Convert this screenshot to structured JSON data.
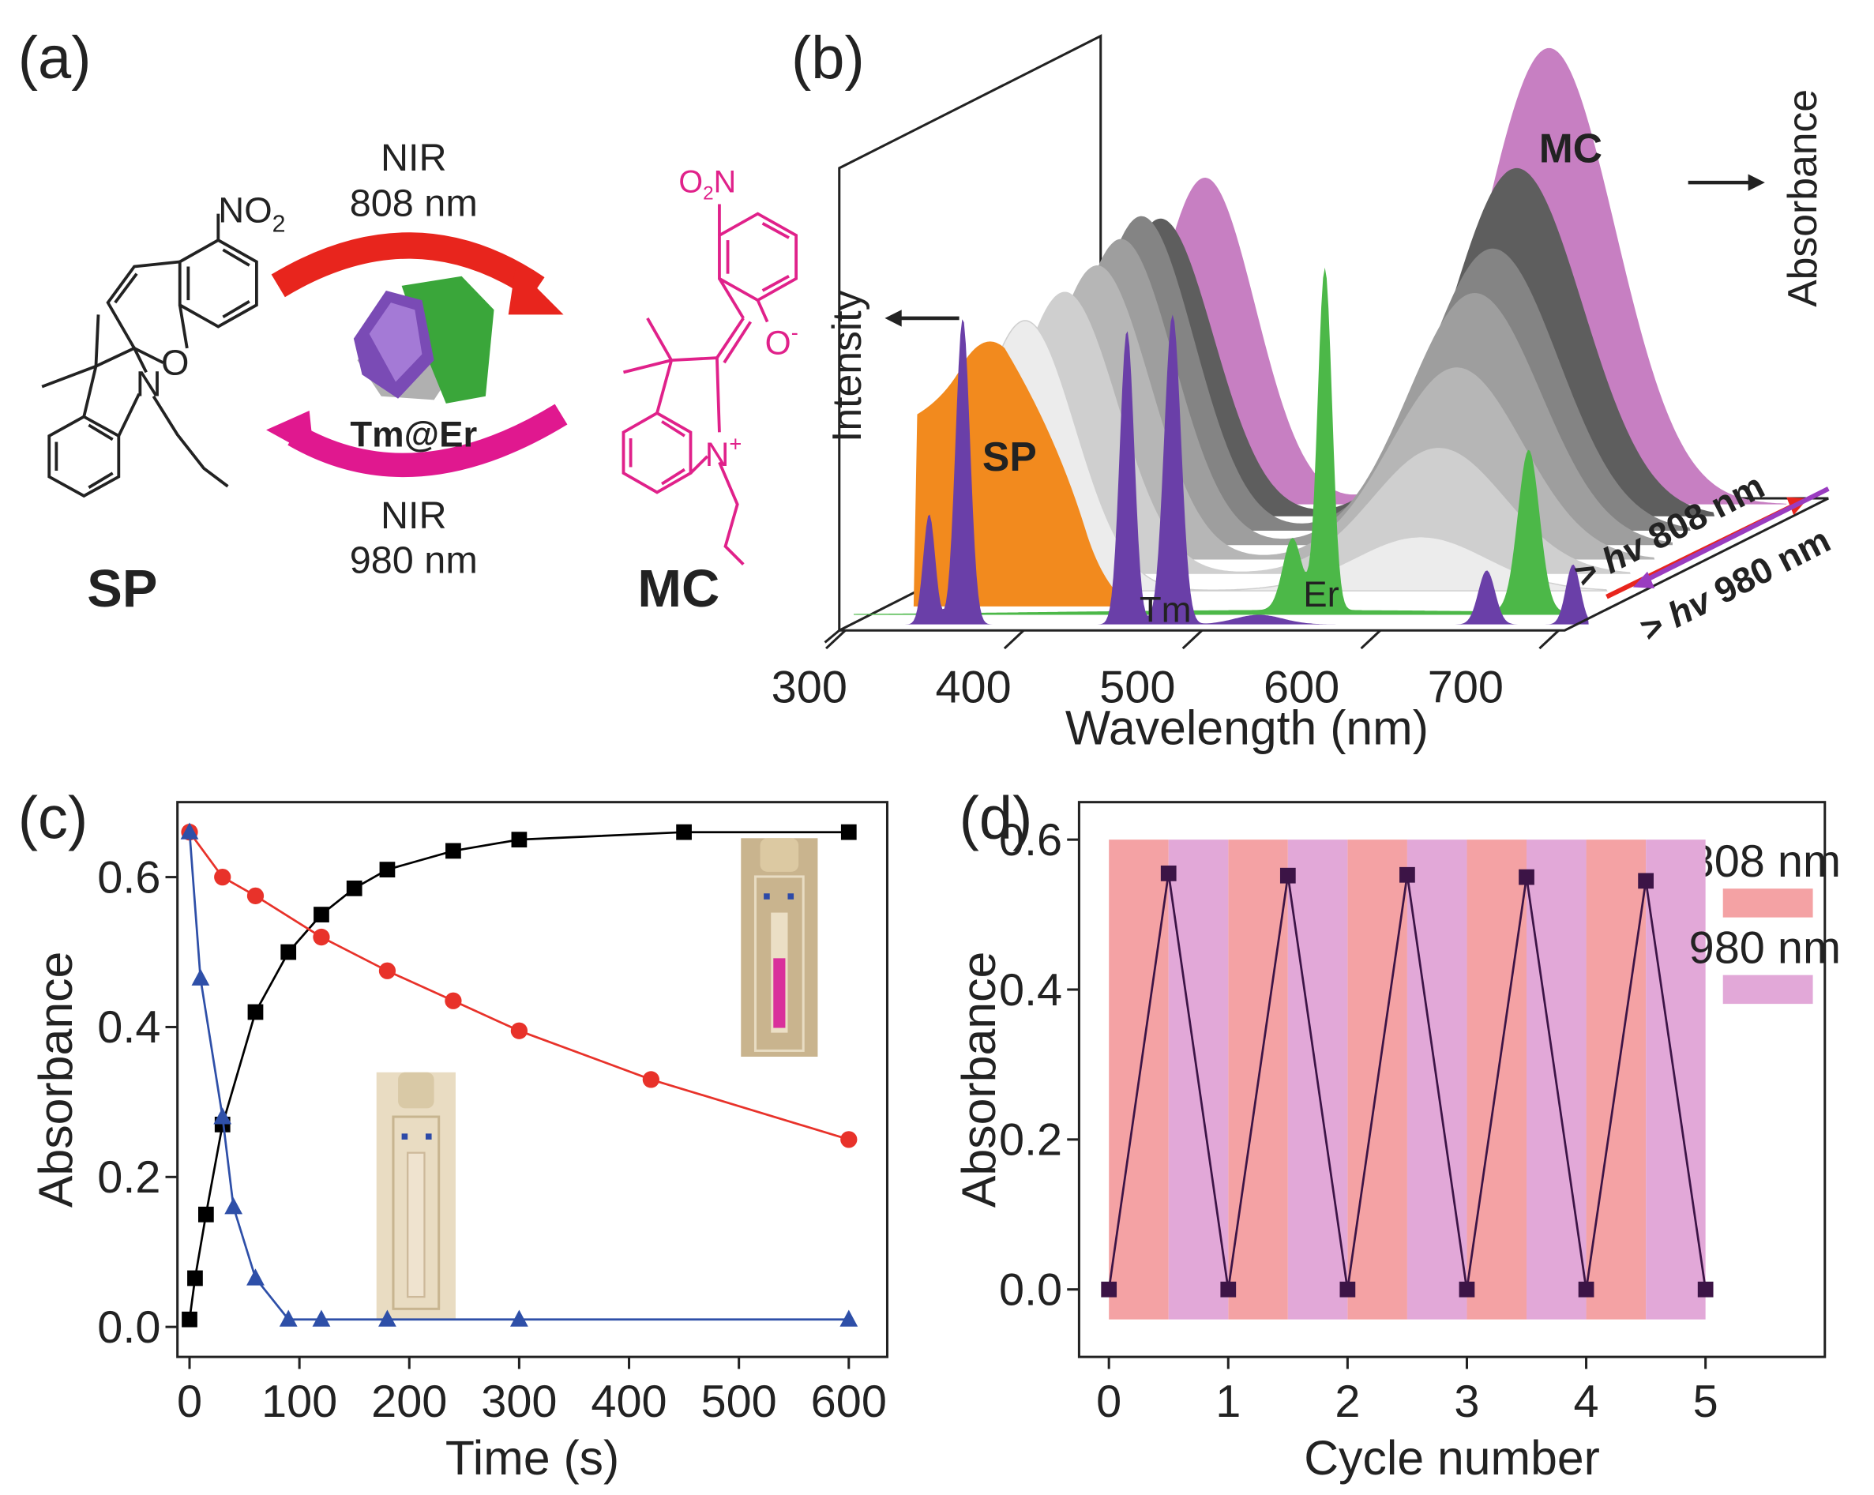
{
  "panel_a": {
    "label": "(a)",
    "top_arrow": {
      "line1": "NIR",
      "line2": "808 nm"
    },
    "bottom_arrow": {
      "line1": "NIR",
      "line2": "980 nm"
    },
    "particle": "Tm@Er",
    "left_name": "SP",
    "right_name": "MC",
    "sp_atoms": {
      "nitro": "NO",
      "nitro_sub": "2",
      "oxygen": "O",
      "nitrogen": "N"
    },
    "mc_atoms": {
      "nitro_o": "O",
      "nitro_sub": "2",
      "nitro_n": "N",
      "phenolate": "O",
      "phenolate_charge": "-",
      "nitrogen": "N",
      "nitrogen_charge": "+"
    }
  },
  "panel_b": {
    "label": "(b)",
    "x_label": "Wavelength (nm)",
    "xlim": [
      300,
      700
    ],
    "xticks": [
      300,
      400,
      500,
      600,
      700
    ],
    "left_axis": "Intensity",
    "right_axis": "Absorbance",
    "annotations": {
      "mc": "MC",
      "sp": "SP",
      "tm": "Tm",
      "er": "Er"
    },
    "beam_808": {
      "prefix": ">",
      "symbol": "hv",
      "text": "808 nm"
    },
    "beam_980": {
      "prefix": ">",
      "symbol": "hv",
      "text": "980 nm"
    }
  },
  "chart_data": [
    {
      "type": "line",
      "panel_label": "(c)",
      "x_label": "Time (s)",
      "y_label": "Absorbance",
      "xlim": [
        -11,
        635
      ],
      "ylim": [
        -0.04,
        0.7
      ],
      "xticks": [
        0,
        100,
        200,
        300,
        400,
        500,
        600
      ],
      "yticks": [
        {
          "value": 0,
          "label": "0.0"
        },
        0.2,
        0.4,
        0.6
      ],
      "series": [
        {
          "color": "#000000",
          "marker": "square",
          "x": [
            0,
            5,
            15,
            30,
            60,
            90,
            120,
            150,
            180,
            240,
            300,
            450,
            600
          ],
          "values": [
            0.01,
            0.065,
            0.15,
            0.27,
            0.42,
            0.5,
            0.55,
            0.585,
            0.61,
            0.635,
            0.65,
            0.66,
            0.66
          ]
        },
        {
          "color": "#e8322a",
          "marker": "circle",
          "x": [
            0,
            30,
            60,
            120,
            180,
            240,
            300,
            420,
            600
          ],
          "values": [
            0.66,
            0.6,
            0.575,
            0.52,
            0.475,
            0.435,
            0.395,
            0.33,
            0.25
          ]
        },
        {
          "color": "#2e4fa8",
          "marker": "triangle",
          "x": [
            0,
            10,
            30,
            40,
            60,
            90,
            120,
            180,
            300,
            600
          ],
          "values": [
            0.66,
            0.465,
            0.28,
            0.16,
            0.065,
            0.01,
            0.01,
            0.01,
            0.01,
            0.01
          ]
        }
      ]
    },
    {
      "type": "line",
      "panel_label": "(d)",
      "x_label": "Cycle number",
      "y_label": "Absorbance",
      "xlim": [
        -0.25,
        6
      ],
      "ylim": [
        -0.09,
        0.65
      ],
      "xticks": [
        0,
        1,
        2,
        3,
        4,
        5
      ],
      "yticks": [
        {
          "value": 0,
          "label": "0.0"
        },
        0.2,
        0.4,
        0.6
      ],
      "band_ylim": [
        -0.04,
        0.6
      ],
      "bands": [
        {
          "name": "808 nm",
          "color": "#f4a2a4",
          "spans": [
            [
              0,
              0.5
            ],
            [
              1,
              1.5
            ],
            [
              2,
              2.5
            ],
            [
              3,
              3.5
            ],
            [
              4,
              4.5
            ]
          ]
        },
        {
          "name": "980 nm",
          "color": "#e2a8d8",
          "spans": [
            [
              0.5,
              1
            ],
            [
              1.5,
              2
            ],
            [
              2.5,
              3
            ],
            [
              3.5,
              4
            ],
            [
              4.5,
              5
            ]
          ]
        }
      ],
      "series": [
        {
          "color": "#3c1446",
          "marker": "square",
          "x": [
            0,
            0.5,
            1,
            1.5,
            2,
            2.5,
            3,
            3.5,
            4,
            4.5,
            5
          ],
          "values": [
            0,
            0.555,
            0,
            0.552,
            0,
            0.553,
            0,
            0.55,
            0,
            0.545,
            0
          ]
        }
      ]
    }
  ]
}
